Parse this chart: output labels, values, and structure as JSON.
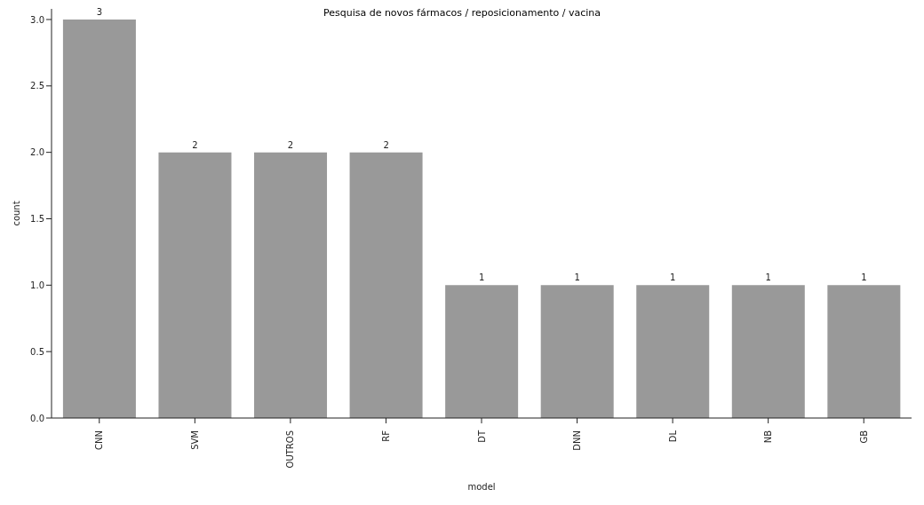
{
  "chart_data": {
    "type": "bar",
    "title": "Pesquisa de novos fármacos / reposicionamento / vacina",
    "xlabel": "model",
    "ylabel": "count",
    "categories": [
      "CNN",
      "SVM",
      "OUTROS",
      "RF",
      "DT",
      "DNN",
      "DL",
      "NB",
      "GB"
    ],
    "values": [
      3,
      2,
      2,
      2,
      1,
      1,
      1,
      1,
      1
    ],
    "color": "#999999",
    "ylim": [
      0,
      3.08
    ],
    "yticks": [
      {
        "value": 0,
        "label": "0.0"
      },
      {
        "value": 0.5,
        "label": "0.5"
      },
      {
        "value": 1,
        "label": "1.0"
      },
      {
        "value": 1.5,
        "label": "1.5"
      },
      {
        "value": 2,
        "label": "2.0"
      },
      {
        "value": 2.5,
        "label": "2.5"
      },
      {
        "value": 3,
        "label": "3.0"
      }
    ],
    "data_labels": true,
    "grid": false,
    "legend": false
  }
}
